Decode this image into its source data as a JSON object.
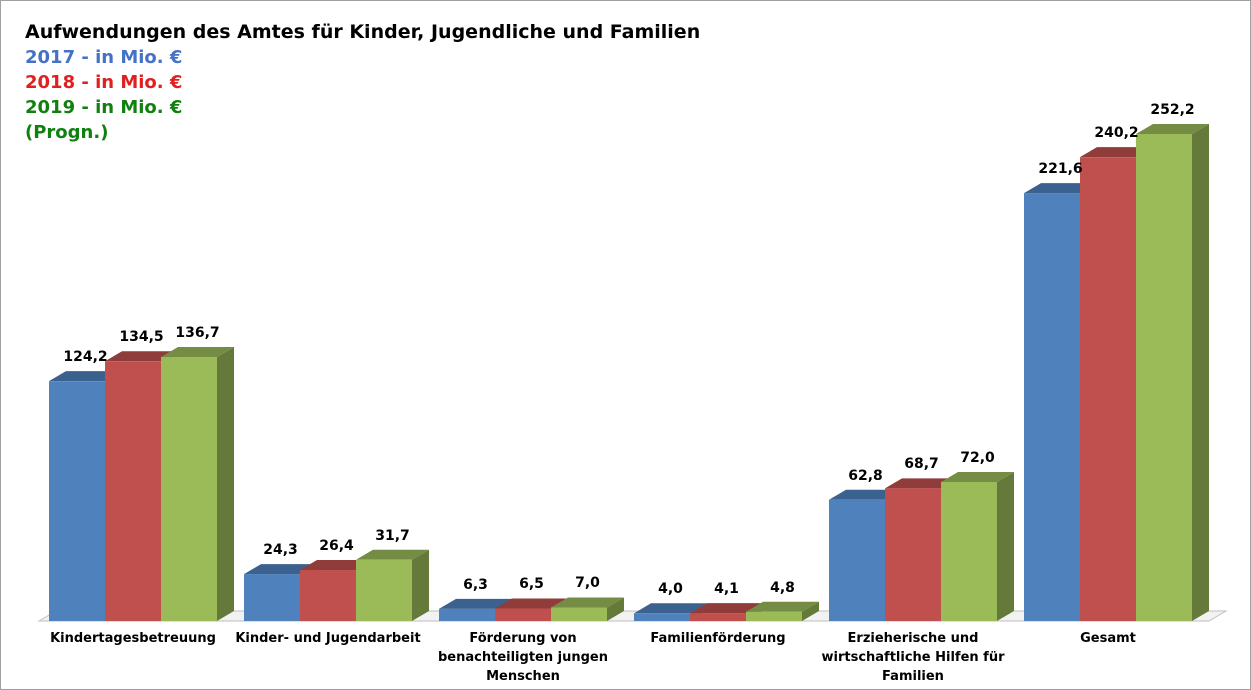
{
  "chart_data": {
    "type": "bar3d",
    "title": "Aufwendungen des Amtes für Kinder, Jugendliche und Familien",
    "categories": [
      "Kindertagesbetreuung",
      "Kinder- und Jugendarbeit",
      "Förderung von benachteiligten jungen Menschen",
      "Familienförderung",
      "Erzieherische und wirtschaftliche Hilfen für Familien",
      "Gesamt"
    ],
    "series": [
      {
        "name": "2017 - in Mio. €",
        "color": "#4f81bd",
        "values": [
          124.2,
          24.3,
          6.3,
          4.0,
          62.8,
          221.6
        ],
        "value_labels": [
          "124,2",
          "24,3",
          "6,3",
          "4,0",
          "62,8",
          "221,6"
        ]
      },
      {
        "name": "2018 - in Mio. €",
        "color": "#c0504d",
        "values": [
          134.5,
          26.4,
          6.5,
          4.1,
          68.7,
          240.2
        ],
        "value_labels": [
          "134,5",
          "26,4",
          "6,5",
          "4,1",
          "68,7",
          "240,2"
        ]
      },
      {
        "name": "2019 - in Mio. € (Progn.)",
        "color": "#9bbb59",
        "values": [
          136.7,
          31.7,
          7.0,
          4.8,
          72.0,
          252.2
        ],
        "value_labels": [
          "136,7",
          "31,7",
          "7,0",
          "4,8",
          "72,0",
          "252,2"
        ]
      }
    ]
  }
}
